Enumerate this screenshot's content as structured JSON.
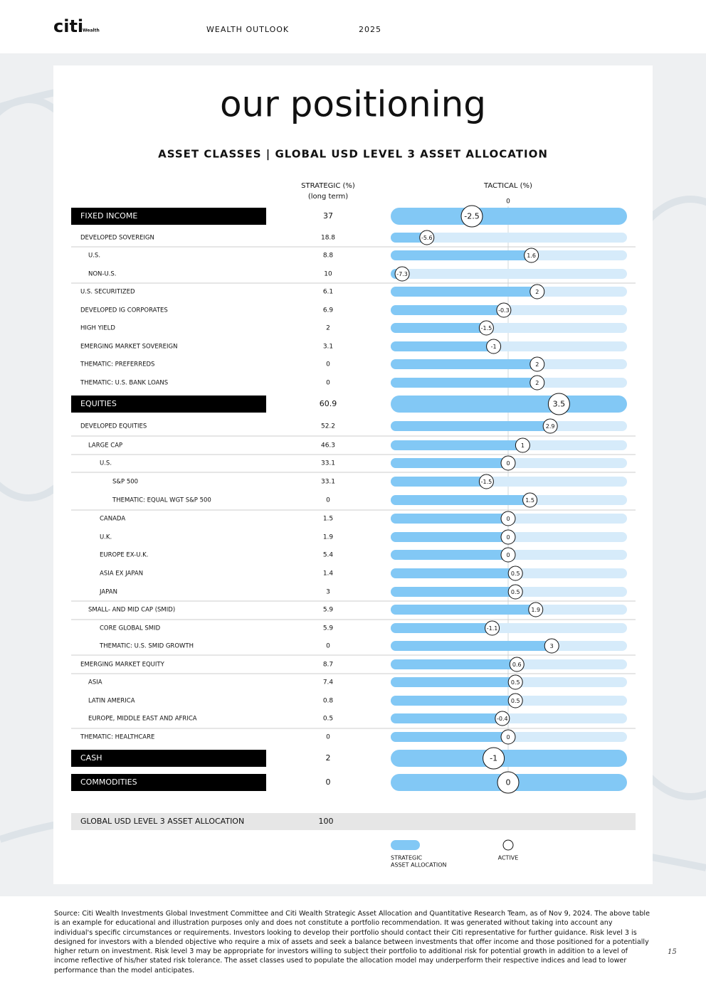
{
  "header": {
    "brand": "citi",
    "brand_sub": "Wealth",
    "publication": "WEALTH OUTLOOK",
    "year": "2025"
  },
  "title": "our positioning",
  "subtitle": "ASSET CLASSES | GLOBAL USD LEVEL 3 ASSET ALLOCATION",
  "columns": {
    "strategic": "STRATEGIC (%)",
    "strategic_note": "(long term)",
    "tactical": "TACTICAL (%)",
    "tactical_zero": 0
  },
  "groups": [
    {
      "label": "FIXED INCOME",
      "strategic": 37,
      "tactical": -2.5,
      "rows": [
        {
          "label": "DEVELOPED SOVEREIGN",
          "strategic": 18.8,
          "tactical": -5.6
        },
        {
          "label": "U.S.",
          "strategic": 8.8,
          "tactical": 1.6
        },
        {
          "label": "NON-U.S.",
          "strategic": 10,
          "tactical": -7.3
        },
        {
          "label": "U.S. SECURITIZED",
          "strategic": 6.1,
          "tactical": 2
        },
        {
          "label": "DEVELOPED IG CORPORATES",
          "strategic": 6.9,
          "tactical": -0.3
        },
        {
          "label": "HIGH YIELD",
          "strategic": 2,
          "tactical": -1.5
        },
        {
          "label": "EMERGING MARKET SOVEREIGN",
          "strategic": 3.1,
          "tactical": -1
        },
        {
          "label": "THEMATIC: PREFERREDS",
          "strategic": 0,
          "tactical": 2
        },
        {
          "label": "THEMATIC: U.S. BANK LOANS",
          "strategic": 0,
          "tactical": 2
        }
      ]
    },
    {
      "label": "EQUITIES",
      "strategic": 60.9,
      "tactical": 3.5,
      "rows": [
        {
          "label": "DEVELOPED EQUITIES",
          "strategic": 52.2,
          "tactical": 2.9
        },
        {
          "label": "LARGE CAP",
          "strategic": 46.3,
          "tactical": 1
        },
        {
          "label": "U.S.",
          "strategic": 33.1,
          "tactical": 0
        },
        {
          "label": "S&P 500",
          "strategic": 33.1,
          "tactical": -1.5
        },
        {
          "label": "THEMATIC: EQUAL WGT S&P 500",
          "strategic": 0,
          "tactical": 1.5
        },
        {
          "label": "CANADA",
          "strategic": 1.5,
          "tactical": 0
        },
        {
          "label": "U.K.",
          "strategic": 1.9,
          "tactical": 0
        },
        {
          "label": "EUROPE EX-U.K.",
          "strategic": 5.4,
          "tactical": 0
        },
        {
          "label": "ASIA EX JAPAN",
          "strategic": 1.4,
          "tactical": 0.5
        },
        {
          "label": "JAPAN",
          "strategic": 3,
          "tactical": 0.5
        },
        {
          "label": "SMALL- AND MID CAP (SMID)",
          "strategic": 5.9,
          "tactical": 1.9
        },
        {
          "label": "CORE GLOBAL SMID",
          "strategic": 5.9,
          "tactical": -1.1
        },
        {
          "label": "THEMATIC: U.S. SMID GROWTH",
          "strategic": 0,
          "tactical": 3
        },
        {
          "label": "EMERGING MARKET EQUITY",
          "strategic": 8.7,
          "tactical": 0.6
        },
        {
          "label": "ASIA",
          "strategic": 7.4,
          "tactical": 0.5
        },
        {
          "label": "LATIN AMERICA",
          "strategic": 0.8,
          "tactical": 0.5
        },
        {
          "label": "EUROPE, MIDDLE EAST AND AFRICA",
          "strategic": 0.5,
          "tactical": -0.4
        },
        {
          "label": "THEMATIC: HEALTHCARE",
          "strategic": 0,
          "tactical": 0
        }
      ]
    },
    {
      "label": "CASH",
      "strategic": 2,
      "tactical": -1,
      "rows": []
    },
    {
      "label": "COMMODITIES",
      "strategic": 0,
      "tactical": 0,
      "rows": []
    }
  ],
  "total": {
    "label": "GLOBAL USD LEVEL 3 ASSET ALLOCATION",
    "strategic": 100
  },
  "legend": {
    "strategic": [
      "STRATEGIC",
      "ASSET ALLOCATION"
    ],
    "active": "ACTIVE"
  },
  "footnote": "Source: Citi Wealth Investments Global Investment Committee and Citi Wealth Strategic Asset Allocation and Quantitative Research Team, as of Nov 9, 2024. The above table is an example for educational and illustration purposes only and does not constitute a portfolio recommendation. It was generated without taking into account any individual's specific circumstances or requirements. Investors looking to develop their portfolio should contact their Citi representative for further guidance. Risk level 3 is designed for investors with a blended objective who require a mix of assets and seek a balance between investments that offer income and those positioned for a potentially higher return on investment. Risk level 3 may be appropriate for investors willing to subject their portfolio to additional risk for potential growth in addition to a level of income reflective of his/her stated risk tolerance. The asset classes used to populate the allocation model may underperform their respective indices and lead to lower performance than the model anticipates.",
  "page_number": "15"
}
